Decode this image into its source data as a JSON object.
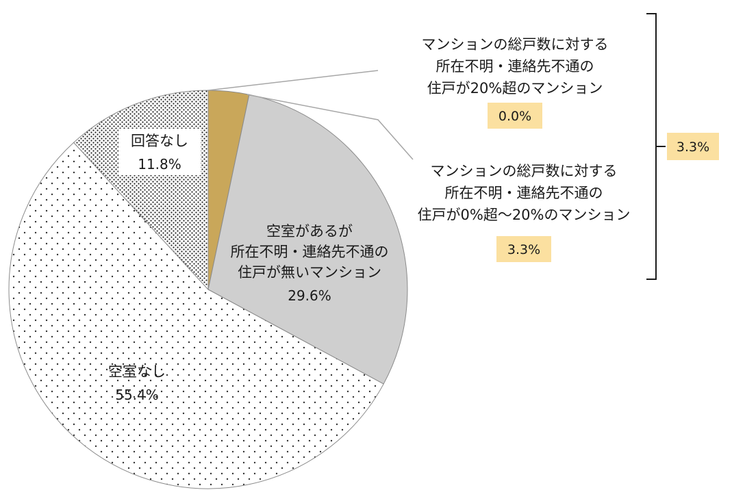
{
  "chart_data": {
    "type": "pie",
    "slices": [
      {
        "name": "空室があるが所在不明・連絡先不通の住戸が無いマンション",
        "label_lines": [
          "空室があるが",
          "所在不明・連絡先不通の",
          "住戸が無いマンション"
        ],
        "value": 29.6,
        "value_label": "29.6%",
        "fill": "#cfcfcf",
        "pattern": "solid"
      },
      {
        "name": "空室なし",
        "label_lines": [
          "空室なし"
        ],
        "value": 55.4,
        "value_label": "55.4%",
        "fill": "#ffffff",
        "pattern": "sparse-dots"
      },
      {
        "name": "回答なし",
        "label_lines": [
          "回答なし"
        ],
        "value": 11.8,
        "value_label": "11.8%",
        "fill": "#ffffff",
        "pattern": "dense-dots"
      },
      {
        "name": "マンションの総戸数に対する所在不明・連絡先不通の住戸が0%超～20%のマンション",
        "value": 3.3,
        "value_label": "3.3%",
        "fill": "#c9a75a",
        "pattern": "solid"
      },
      {
        "name": "マンションの総戸数に対する所在不明・連絡先不通の住戸が20%超のマンション",
        "value": 0.0,
        "value_label": "0.0%",
        "fill": "#c9a75a",
        "pattern": "solid"
      }
    ],
    "callouts": [
      {
        "lines": [
          "マンションの総戸数に対する",
          "所在不明・連絡先不通の",
          "住戸が20%超のマンション"
        ],
        "value_label": "0.0%"
      },
      {
        "lines": [
          "マンションの総戸数に対する",
          "所在不明・連絡先不通の",
          "住戸が0%超～20%のマンション"
        ],
        "value_label": "3.3%"
      }
    ],
    "bracket_total": "3.3%",
    "colors": {
      "highlight": "#c9a75a",
      "badge": "#fbe0a0",
      "gray_slice": "#cfcfcf",
      "leader_line": "#a6a6a6"
    }
  }
}
